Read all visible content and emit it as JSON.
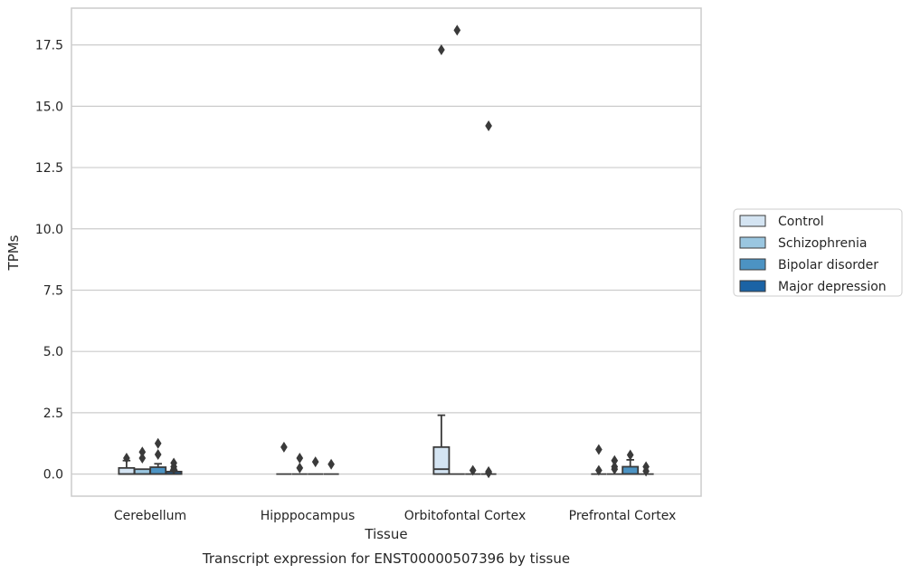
{
  "caption": "Transcript expression for ENST00000507396 by tissue",
  "chart_data": {
    "type": "box",
    "xlabel": "Tissue",
    "ylabel": "TPMs",
    "ylim": [
      -0.9,
      19.0
    ],
    "yticks": [
      "0.0",
      "2.5",
      "5.0",
      "7.5",
      "10.0",
      "12.5",
      "15.0",
      "17.5"
    ],
    "grid": "horizontal",
    "legend_position": "right",
    "categories": [
      "Cerebellum",
      "Hipppocampus",
      "Orbitofontal Cortex",
      "Prefrontal Cortex"
    ],
    "series": [
      {
        "name": "Control",
        "color": "#d4e4f2",
        "boxes": [
          {
            "q1": 0.0,
            "median": 0.0,
            "q3": 0.25,
            "whisker_low": 0.0,
            "whisker_high": 0.55,
            "outliers": [
              0.65
            ]
          },
          {
            "q1": 0.0,
            "median": 0.0,
            "q3": 0.0,
            "whisker_low": 0.0,
            "whisker_high": 0.0,
            "outliers": [
              1.1
            ]
          },
          {
            "q1": 0.0,
            "median": 0.2,
            "q3": 1.1,
            "whisker_low": 0.0,
            "whisker_high": 2.4,
            "outliers": [
              17.3
            ]
          },
          {
            "q1": 0.0,
            "median": 0.0,
            "q3": 0.0,
            "whisker_low": 0.0,
            "whisker_high": 0.0,
            "outliers": [
              1.0,
              0.15
            ]
          }
        ]
      },
      {
        "name": "Schizophrenia",
        "color": "#9ac6e0",
        "boxes": [
          {
            "q1": 0.0,
            "median": 0.0,
            "q3": 0.2,
            "whisker_low": 0.0,
            "whisker_high": 0.2,
            "outliers": [
              0.9,
              0.65
            ]
          },
          {
            "q1": 0.0,
            "median": 0.0,
            "q3": 0.0,
            "whisker_low": 0.0,
            "whisker_high": 0.0,
            "outliers": [
              0.65,
              0.25
            ]
          },
          {
            "q1": 0.0,
            "median": 0.0,
            "q3": 0.0,
            "whisker_low": 0.0,
            "whisker_high": 0.0,
            "outliers": [
              18.1
            ]
          },
          {
            "q1": 0.0,
            "median": 0.0,
            "q3": 0.0,
            "whisker_low": 0.0,
            "whisker_high": 0.0,
            "outliers": [
              0.55,
              0.3,
              0.2
            ]
          }
        ]
      },
      {
        "name": "Bipolar disorder",
        "color": "#4c93c3",
        "boxes": [
          {
            "q1": 0.0,
            "median": 0.0,
            "q3": 0.28,
            "whisker_low": 0.0,
            "whisker_high": 0.42,
            "outliers": [
              1.25,
              0.8
            ]
          },
          {
            "q1": 0.0,
            "median": 0.0,
            "q3": 0.0,
            "whisker_low": 0.0,
            "whisker_high": 0.0,
            "outliers": [
              0.5
            ]
          },
          {
            "q1": 0.0,
            "median": 0.0,
            "q3": 0.0,
            "whisker_low": 0.0,
            "whisker_high": 0.0,
            "outliers": [
              0.15
            ]
          },
          {
            "q1": 0.0,
            "median": 0.0,
            "q3": 0.3,
            "whisker_low": 0.0,
            "whisker_high": 0.58,
            "outliers": [
              0.78
            ]
          }
        ]
      },
      {
        "name": "Major depression",
        "color": "#1b63a5",
        "boxes": [
          {
            "q1": 0.0,
            "median": 0.0,
            "q3": 0.1,
            "whisker_low": 0.0,
            "whisker_high": 0.15,
            "outliers": [
              0.45,
              0.3,
              0.2
            ]
          },
          {
            "q1": 0.0,
            "median": 0.0,
            "q3": 0.0,
            "whisker_low": 0.0,
            "whisker_high": 0.0,
            "outliers": [
              0.4
            ]
          },
          {
            "q1": 0.0,
            "median": 0.0,
            "q3": 0.0,
            "whisker_low": 0.0,
            "whisker_high": 0.0,
            "outliers": [
              14.2,
              0.1,
              0.05
            ]
          },
          {
            "q1": 0.0,
            "median": 0.0,
            "q3": 0.0,
            "whisker_low": 0.0,
            "whisker_high": 0.0,
            "outliers": [
              0.3,
              0.12
            ]
          }
        ]
      }
    ]
  }
}
